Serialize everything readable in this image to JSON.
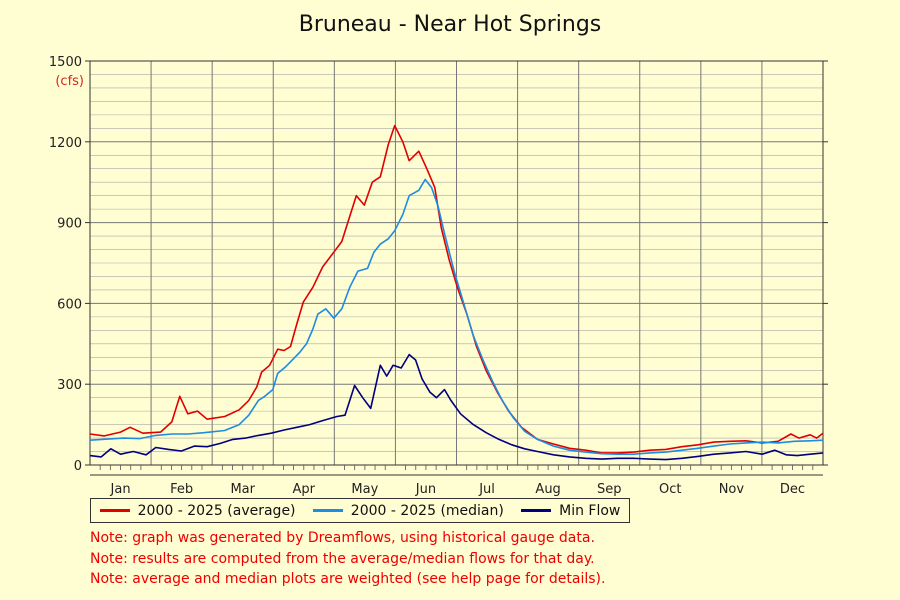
{
  "title": "Bruneau - Near Hot Springs",
  "unit": "(cfs)",
  "legend": [
    {
      "label": "2000 - 2025 (average)",
      "color": "#e00000"
    },
    {
      "label": "2000 - 2025 (median)",
      "color": "#1e8ce0"
    },
    {
      "label": "Min Flow",
      "color": "#000080"
    }
  ],
  "notes": [
    "Note: graph was generated by Dreamflows, using historical gauge data.",
    "Note: results are computed from the average/median flows for that day.",
    "Note: average and median plots are weighted (see help page for details)."
  ],
  "chart_data": {
    "type": "line",
    "title": "Bruneau - Near Hot Springs",
    "ylabel": "(cfs)",
    "xlabel": "",
    "ylim": [
      0,
      1500
    ],
    "yticks": [
      0,
      300,
      600,
      900,
      1200,
      1500
    ],
    "months": [
      "Jan",
      "Feb",
      "Mar",
      "Apr",
      "May",
      "Jun",
      "Jul",
      "Aug",
      "Sep",
      "Oct",
      "Nov",
      "Dec"
    ],
    "grid": true,
    "legend_position": "bottom",
    "x_unit": "day of year",
    "series": [
      {
        "name": "2000 - 2025 (average)",
        "color": "#e00000",
        "points": [
          [
            1,
            115
          ],
          [
            10,
            108
          ],
          [
            20,
            122
          ],
          [
            26,
            140
          ],
          [
            34,
            118
          ],
          [
            45,
            122
          ],
          [
            52,
            160
          ],
          [
            57,
            255
          ],
          [
            62,
            190
          ],
          [
            68,
            200
          ],
          [
            74,
            170
          ],
          [
            85,
            180
          ],
          [
            94,
            205
          ],
          [
            100,
            240
          ],
          [
            105,
            290
          ],
          [
            108,
            345
          ],
          [
            113,
            370
          ],
          [
            118,
            430
          ],
          [
            122,
            425
          ],
          [
            126,
            440
          ],
          [
            130,
            525
          ],
          [
            134,
            605
          ],
          [
            140,
            660
          ],
          [
            146,
            735
          ],
          [
            153,
            790
          ],
          [
            158,
            830
          ],
          [
            162,
            905
          ],
          [
            167,
            1000
          ],
          [
            172,
            965
          ],
          [
            177,
            1050
          ],
          [
            182,
            1070
          ],
          [
            187,
            1190
          ],
          [
            191,
            1260
          ],
          [
            196,
            1200
          ],
          [
            200,
            1130
          ],
          [
            206,
            1165
          ],
          [
            211,
            1100
          ],
          [
            216,
            1030
          ],
          [
            220,
            880
          ],
          [
            225,
            760
          ],
          [
            230,
            660
          ],
          [
            236,
            560
          ],
          [
            242,
            440
          ],
          [
            248,
            350
          ],
          [
            255,
            270
          ],
          [
            262,
            200
          ],
          [
            270,
            140
          ],
          [
            280,
            95
          ],
          [
            290,
            78
          ],
          [
            300,
            62
          ],
          [
            310,
            55
          ],
          [
            320,
            45
          ],
          [
            330,
            45
          ],
          [
            340,
            48
          ],
          [
            350,
            55
          ],
          [
            360,
            58
          ],
          [
            370,
            68
          ],
          [
            380,
            75
          ],
          [
            390,
            85
          ],
          [
            400,
            88
          ],
          [
            410,
            90
          ],
          [
            420,
            82
          ],
          [
            430,
            88
          ],
          [
            438,
            115
          ],
          [
            443,
            100
          ],
          [
            450,
            112
          ],
          [
            454,
            100
          ],
          [
            458,
            118
          ]
        ]
      },
      {
        "name": "2000 - 2025 (median)",
        "color": "#1e8ce0",
        "points": [
          [
            1,
            92
          ],
          [
            12,
            96
          ],
          [
            22,
            100
          ],
          [
            32,
            98
          ],
          [
            42,
            110
          ],
          [
            52,
            115
          ],
          [
            62,
            115
          ],
          [
            72,
            120
          ],
          [
            85,
            128
          ],
          [
            94,
            150
          ],
          [
            100,
            185
          ],
          [
            106,
            240
          ],
          [
            110,
            255
          ],
          [
            115,
            280
          ],
          [
            118,
            340
          ],
          [
            123,
            365
          ],
          [
            128,
            395
          ],
          [
            132,
            420
          ],
          [
            136,
            450
          ],
          [
            140,
            505
          ],
          [
            143,
            560
          ],
          [
            148,
            580
          ],
          [
            153,
            545
          ],
          [
            158,
            580
          ],
          [
            163,
            660
          ],
          [
            168,
            720
          ],
          [
            174,
            730
          ],
          [
            178,
            790
          ],
          [
            182,
            820
          ],
          [
            187,
            840
          ],
          [
            191,
            870
          ],
          [
            196,
            930
          ],
          [
            200,
            1000
          ],
          [
            206,
            1020
          ],
          [
            210,
            1060
          ],
          [
            214,
            1030
          ],
          [
            218,
            960
          ],
          [
            222,
            860
          ],
          [
            228,
            720
          ],
          [
            234,
            600
          ],
          [
            240,
            480
          ],
          [
            246,
            390
          ],
          [
            252,
            310
          ],
          [
            258,
            240
          ],
          [
            265,
            175
          ],
          [
            272,
            125
          ],
          [
            280,
            95
          ],
          [
            290,
            70
          ],
          [
            300,
            55
          ],
          [
            310,
            48
          ],
          [
            320,
            42
          ],
          [
            330,
            40
          ],
          [
            340,
            40
          ],
          [
            350,
            45
          ],
          [
            360,
            48
          ],
          [
            370,
            55
          ],
          [
            380,
            62
          ],
          [
            390,
            70
          ],
          [
            400,
            78
          ],
          [
            410,
            82
          ],
          [
            420,
            85
          ],
          [
            430,
            82
          ],
          [
            440,
            88
          ],
          [
            450,
            90
          ],
          [
            458,
            92
          ]
        ]
      },
      {
        "name": "Min Flow",
        "color": "#000080",
        "points": [
          [
            1,
            35
          ],
          [
            8,
            30
          ],
          [
            14,
            60
          ],
          [
            20,
            40
          ],
          [
            28,
            50
          ],
          [
            36,
            38
          ],
          [
            42,
            65
          ],
          [
            50,
            58
          ],
          [
            58,
            52
          ],
          [
            66,
            70
          ],
          [
            74,
            68
          ],
          [
            82,
            80
          ],
          [
            90,
            95
          ],
          [
            98,
            100
          ],
          [
            106,
            110
          ],
          [
            114,
            118
          ],
          [
            122,
            130
          ],
          [
            130,
            140
          ],
          [
            138,
            150
          ],
          [
            146,
            165
          ],
          [
            155,
            180
          ],
          [
            160,
            185
          ],
          [
            166,
            295
          ],
          [
            171,
            250
          ],
          [
            176,
            210
          ],
          [
            182,
            370
          ],
          [
            186,
            330
          ],
          [
            190,
            370
          ],
          [
            195,
            360
          ],
          [
            200,
            410
          ],
          [
            204,
            390
          ],
          [
            208,
            320
          ],
          [
            213,
            270
          ],
          [
            217,
            250
          ],
          [
            222,
            280
          ],
          [
            226,
            240
          ],
          [
            232,
            190
          ],
          [
            240,
            150
          ],
          [
            248,
            120
          ],
          [
            256,
            95
          ],
          [
            264,
            75
          ],
          [
            272,
            60
          ],
          [
            280,
            50
          ],
          [
            290,
            38
          ],
          [
            300,
            30
          ],
          [
            310,
            25
          ],
          [
            320,
            22
          ],
          [
            330,
            25
          ],
          [
            340,
            25
          ],
          [
            350,
            22
          ],
          [
            360,
            20
          ],
          [
            370,
            25
          ],
          [
            380,
            32
          ],
          [
            390,
            40
          ],
          [
            400,
            45
          ],
          [
            410,
            50
          ],
          [
            420,
            40
          ],
          [
            428,
            55
          ],
          [
            435,
            38
          ],
          [
            442,
            35
          ],
          [
            450,
            40
          ],
          [
            458,
            45
          ]
        ]
      }
    ]
  }
}
